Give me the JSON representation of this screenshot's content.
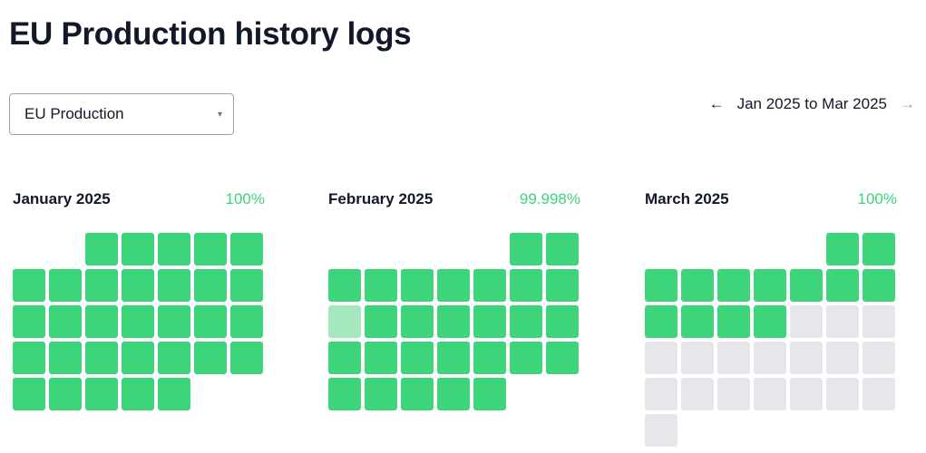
{
  "page": {
    "title": "EU Production history logs"
  },
  "environment_select": {
    "value": "EU Production",
    "caret": "▾"
  },
  "range": {
    "label": "Jan 2025 to Mar 2025",
    "prev_arrow": "←",
    "next_arrow": "→"
  },
  "colors": {
    "up": "#3ed47a",
    "partial": "#a5e8bd",
    "no_data": "#e5e7eb",
    "uptime_text": "#3ed47a"
  },
  "months": [
    {
      "name": "January 2025",
      "uptime": "100%",
      "first_weekday": 2,
      "days": [
        "up",
        "up",
        "up",
        "up",
        "up",
        "up",
        "up",
        "up",
        "up",
        "up",
        "up",
        "up",
        "up",
        "up",
        "up",
        "up",
        "up",
        "up",
        "up",
        "up",
        "up",
        "up",
        "up",
        "up",
        "up",
        "up",
        "up",
        "up",
        "up",
        "up",
        "up"
      ]
    },
    {
      "name": "February 2025",
      "uptime": "99.998%",
      "first_weekday": 5,
      "days": [
        "up",
        "up",
        "up",
        "up",
        "up",
        "up",
        "up",
        "up",
        "up",
        "partial",
        "up",
        "up",
        "up",
        "up",
        "up",
        "up",
        "up",
        "up",
        "up",
        "up",
        "up",
        "up",
        "up",
        "up",
        "up",
        "up",
        "up",
        "up"
      ]
    },
    {
      "name": "March 2025",
      "uptime": "100%",
      "first_weekday": 5,
      "days": [
        "up",
        "up",
        "up",
        "up",
        "up",
        "up",
        "up",
        "up",
        "up",
        "up",
        "up",
        "up",
        "up",
        "none",
        "none",
        "none",
        "none",
        "none",
        "none",
        "none",
        "none",
        "none",
        "none",
        "none",
        "none",
        "none",
        "none",
        "none",
        "none",
        "none",
        "none"
      ]
    }
  ]
}
